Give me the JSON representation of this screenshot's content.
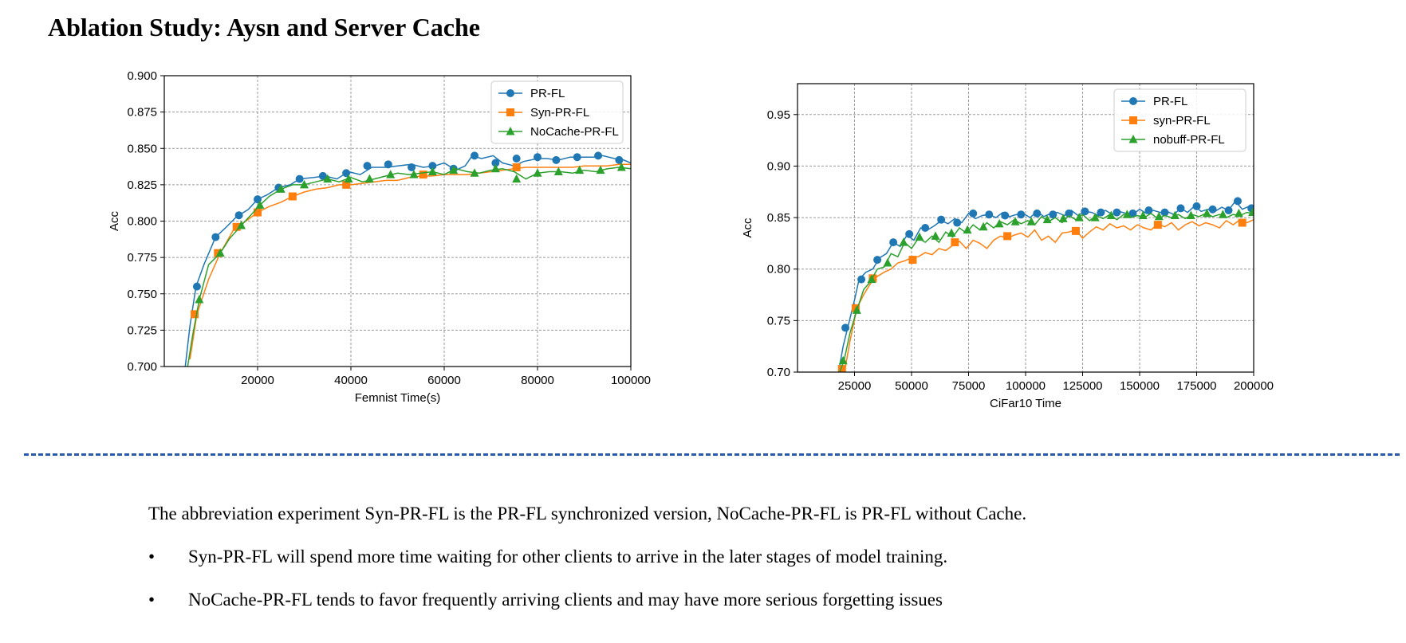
{
  "title": "Ablation Study: Aysn and Server Cache",
  "chart_data": [
    {
      "type": "line",
      "xlabel": "Femnist Time(s)",
      "ylabel": "Acc",
      "xlim": [
        0,
        100000
      ],
      "ylim": [
        0.7,
        0.9
      ],
      "xticks": [
        20000,
        40000,
        60000,
        80000,
        100000
      ],
      "yticks": [
        0.7,
        0.725,
        0.75,
        0.775,
        0.8,
        0.825,
        0.85,
        0.875,
        0.9
      ],
      "ytick_decimals": 3,
      "grid": true,
      "legend": "top-right",
      "series": [
        {
          "name": "PR-FL",
          "color": "#1f77b4",
          "marker": "circle",
          "x": [
            4500,
            5500,
            6800,
            8500,
            11000,
            13000,
            15500,
            18000,
            20000,
            22000,
            24500,
            27000,
            29000,
            32000,
            34500,
            37000,
            39500,
            42000,
            44500,
            47500,
            50000,
            53000,
            55500,
            58000,
            60000,
            62500,
            64500,
            66000,
            68000,
            70500,
            72500,
            75000,
            77000,
            80000,
            82000,
            84500,
            87000,
            89500,
            92000,
            94000,
            96500,
            98500,
            100000
          ],
          "y": [
            0.7,
            0.728,
            0.755,
            0.77,
            0.789,
            0.795,
            0.803,
            0.808,
            0.815,
            0.818,
            0.823,
            0.825,
            0.829,
            0.83,
            0.831,
            0.829,
            0.834,
            0.832,
            0.837,
            0.837,
            0.838,
            0.839,
            0.837,
            0.838,
            0.84,
            0.835,
            0.838,
            0.845,
            0.843,
            0.845,
            0.84,
            0.838,
            0.841,
            0.843,
            0.843,
            0.842,
            0.844,
            0.844,
            0.844,
            0.845,
            0.843,
            0.842,
            0.84
          ],
          "marker_x": [
            7000,
            11000,
            16000,
            20000,
            24500,
            29000,
            34000,
            39000,
            43500,
            48000,
            53000,
            57500,
            62000,
            66500,
            71000,
            75500,
            80000,
            84000,
            88500,
            93000,
            97500
          ],
          "marker_y": [
            0.755,
            0.789,
            0.804,
            0.815,
            0.823,
            0.829,
            0.831,
            0.833,
            0.838,
            0.839,
            0.837,
            0.838,
            0.836,
            0.845,
            0.84,
            0.843,
            0.844,
            0.842,
            0.844,
            0.845,
            0.842
          ]
        },
        {
          "name": "Syn-PR-FL",
          "color": "#ff7f0e",
          "marker": "square",
          "x": [
            5500,
            7000,
            9500,
            12000,
            15000,
            17500,
            20000,
            22500,
            25000,
            27500,
            30000,
            32500,
            35000,
            37500,
            40000,
            42500,
            45000,
            47500,
            50000,
            52500,
            55000,
            57500,
            60000,
            62500,
            65000,
            67500,
            70000,
            72500,
            75000,
            77500,
            80000,
            82500,
            85000,
            87500,
            90000,
            92500,
            95000,
            97500,
            100000
          ],
          "y": [
            0.705,
            0.736,
            0.76,
            0.778,
            0.795,
            0.8,
            0.806,
            0.81,
            0.813,
            0.817,
            0.82,
            0.822,
            0.823,
            0.825,
            0.825,
            0.826,
            0.827,
            0.828,
            0.828,
            0.83,
            0.831,
            0.831,
            0.832,
            0.832,
            0.832,
            0.833,
            0.834,
            0.835,
            0.836,
            0.837,
            0.837,
            0.837,
            0.837,
            0.837,
            0.838,
            0.838,
            0.838,
            0.839,
            0.839
          ],
          "marker_x": [
            6500,
            11500,
            15500,
            20000,
            27500,
            39000,
            55500,
            75500
          ],
          "marker_y": [
            0.736,
            0.778,
            0.796,
            0.806,
            0.817,
            0.825,
            0.832,
            0.837
          ]
        },
        {
          "name": "NoCache-PR-FL",
          "color": "#2ca02c",
          "marker": "triangle",
          "x": [
            5000,
            6000,
            7500,
            9500,
            12000,
            14000,
            16500,
            18500,
            20500,
            22500,
            25000,
            27500,
            30000,
            32500,
            35000,
            37500,
            40000,
            42500,
            45000,
            47500,
            50000,
            52500,
            55000,
            57500,
            60000,
            62500,
            65000,
            67500,
            70000,
            72500,
            75000,
            77500,
            80000,
            82500,
            85000,
            87500,
            90000,
            92500,
            95000,
            97500,
            100000
          ],
          "y": [
            0.7,
            0.72,
            0.746,
            0.77,
            0.778,
            0.788,
            0.797,
            0.804,
            0.811,
            0.817,
            0.822,
            0.825,
            0.825,
            0.827,
            0.829,
            0.827,
            0.83,
            0.827,
            0.829,
            0.831,
            0.833,
            0.832,
            0.833,
            0.834,
            0.832,
            0.836,
            0.834,
            0.833,
            0.835,
            0.836,
            0.834,
            0.829,
            0.833,
            0.834,
            0.834,
            0.833,
            0.835,
            0.834,
            0.836,
            0.837,
            0.836
          ],
          "marker_x": [
            7500,
            12000,
            16500,
            20500,
            25000,
            30000,
            35000,
            39500,
            44000,
            48500,
            53500,
            57500,
            62000,
            66500,
            71000,
            75500,
            80000,
            84500,
            89000,
            93500,
            98000
          ],
          "marker_y": [
            0.746,
            0.778,
            0.797,
            0.811,
            0.822,
            0.825,
            0.829,
            0.829,
            0.829,
            0.832,
            0.832,
            0.834,
            0.835,
            0.833,
            0.836,
            0.829,
            0.833,
            0.834,
            0.835,
            0.835,
            0.837
          ]
        }
      ]
    },
    {
      "type": "line",
      "xlabel": "CiFar10 Time",
      "ylabel": "Acc",
      "xlim": [
        0,
        200000
      ],
      "ylim": [
        0.7,
        0.98
      ],
      "xticks": [
        25000,
        50000,
        75000,
        100000,
        125000,
        150000,
        175000,
        200000
      ],
      "yticks": [
        0.7,
        0.75,
        0.8,
        0.85,
        0.9,
        0.95
      ],
      "ytick_decimals": 2,
      "grid": true,
      "legend": "top-right",
      "series": [
        {
          "name": "PR-FL",
          "color": "#1f77b4",
          "marker": "circle",
          "x": [
            18000,
            20000,
            22000,
            25000,
            27000,
            30000,
            33000,
            36000,
            39000,
            42000,
            45000,
            48000,
            51000,
            54000,
            57000,
            60000,
            63000,
            66000,
            69000,
            72000,
            75000,
            78000,
            81000,
            84000,
            87000,
            90000,
            93000,
            96000,
            99000,
            102000,
            105000,
            108000,
            111000,
            114000,
            117000,
            120000,
            123000,
            126000,
            129000,
            132000,
            135000,
            138000,
            141000,
            144000,
            147000,
            150000,
            153000,
            156000,
            159000,
            162000,
            165000,
            168000,
            171000,
            174000,
            177000,
            180000,
            183000,
            186000,
            189000,
            192000,
            195000,
            198000,
            200000
          ],
          "y": [
            0.7,
            0.725,
            0.743,
            0.77,
            0.79,
            0.797,
            0.8,
            0.811,
            0.815,
            0.826,
            0.822,
            0.833,
            0.828,
            0.84,
            0.838,
            0.842,
            0.847,
            0.844,
            0.849,
            0.845,
            0.854,
            0.849,
            0.852,
            0.853,
            0.85,
            0.855,
            0.851,
            0.853,
            0.854,
            0.85,
            0.856,
            0.851,
            0.854,
            0.855,
            0.852,
            0.857,
            0.852,
            0.856,
            0.855,
            0.852,
            0.857,
            0.853,
            0.856,
            0.854,
            0.853,
            0.858,
            0.854,
            0.857,
            0.855,
            0.856,
            0.853,
            0.859,
            0.855,
            0.861,
            0.856,
            0.858,
            0.856,
            0.86,
            0.857,
            0.866,
            0.858,
            0.861,
            0.859
          ],
          "marker_x": [
            21000,
            28000,
            35000,
            42000,
            49000,
            56000,
            63000,
            70000,
            77000,
            84000,
            91000,
            98000,
            105000,
            112000,
            119000,
            126000,
            133000,
            140000,
            147000,
            154000,
            161000,
            168000,
            175000,
            182000,
            189000,
            193000,
            199000
          ],
          "marker_y": [
            0.743,
            0.79,
            0.809,
            0.826,
            0.834,
            0.84,
            0.848,
            0.845,
            0.854,
            0.853,
            0.852,
            0.853,
            0.854,
            0.853,
            0.854,
            0.856,
            0.855,
            0.855,
            0.854,
            0.857,
            0.855,
            0.859,
            0.861,
            0.858,
            0.857,
            0.866,
            0.859
          ]
        },
        {
          "name": "syn-PR-FL",
          "color": "#ff7f0e",
          "marker": "square",
          "x": [
            19000,
            21000,
            23000,
            26000,
            29000,
            32000,
            35000,
            38000,
            41000,
            44000,
            47000,
            50000,
            53000,
            56000,
            59000,
            62000,
            65000,
            68000,
            71000,
            74000,
            77000,
            80000,
            83000,
            86000,
            89000,
            92000,
            95000,
            98000,
            101000,
            104000,
            107000,
            110000,
            113000,
            116000,
            119000,
            122000,
            125000,
            128000,
            131000,
            134000,
            137000,
            140000,
            143000,
            146000,
            149000,
            152000,
            155000,
            158000,
            161000,
            164000,
            167000,
            170000,
            173000,
            176000,
            179000,
            182000,
            185000,
            188000,
            191000,
            194000,
            197000,
            200000
          ],
          "y": [
            0.7,
            0.705,
            0.73,
            0.762,
            0.775,
            0.786,
            0.793,
            0.797,
            0.8,
            0.806,
            0.808,
            0.811,
            0.812,
            0.816,
            0.814,
            0.82,
            0.818,
            0.823,
            0.827,
            0.82,
            0.828,
            0.825,
            0.82,
            0.828,
            0.832,
            0.83,
            0.833,
            0.835,
            0.831,
            0.838,
            0.828,
            0.832,
            0.826,
            0.835,
            0.836,
            0.838,
            0.83,
            0.836,
            0.841,
            0.838,
            0.844,
            0.84,
            0.842,
            0.838,
            0.843,
            0.84,
            0.838,
            0.844,
            0.841,
            0.845,
            0.838,
            0.843,
            0.846,
            0.842,
            0.845,
            0.843,
            0.84,
            0.847,
            0.843,
            0.848,
            0.845,
            0.848
          ],
          "marker_x": [
            19500,
            25500,
            33000,
            50500,
            69000,
            92000,
            122000,
            158000,
            195000
          ],
          "marker_y": [
            0.703,
            0.762,
            0.791,
            0.809,
            0.826,
            0.832,
            0.837,
            0.843,
            0.845
          ]
        },
        {
          "name": "nobuff-PR-FL",
          "color": "#2ca02c",
          "marker": "triangle",
          "x": [
            18500,
            20500,
            23000,
            26000,
            29000,
            32000,
            35000,
            38000,
            41000,
            44000,
            47000,
            50000,
            53000,
            56000,
            59000,
            62000,
            65000,
            68000,
            71000,
            74000,
            77000,
            80000,
            83000,
            86000,
            89000,
            92000,
            95000,
            98000,
            101000,
            104000,
            107000,
            110000,
            113000,
            116000,
            119000,
            122000,
            125000,
            128000,
            131000,
            134000,
            137000,
            140000,
            143000,
            146000,
            149000,
            152000,
            155000,
            158000,
            161000,
            164000,
            167000,
            170000,
            173000,
            176000,
            179000,
            182000,
            185000,
            188000,
            191000,
            194000,
            197000,
            200000
          ],
          "y": [
            0.7,
            0.712,
            0.738,
            0.76,
            0.78,
            0.788,
            0.8,
            0.802,
            0.815,
            0.812,
            0.826,
            0.82,
            0.83,
            0.826,
            0.832,
            0.826,
            0.836,
            0.831,
            0.84,
            0.835,
            0.843,
            0.838,
            0.845,
            0.84,
            0.846,
            0.843,
            0.848,
            0.844,
            0.847,
            0.843,
            0.851,
            0.846,
            0.85,
            0.845,
            0.852,
            0.848,
            0.853,
            0.847,
            0.852,
            0.849,
            0.853,
            0.848,
            0.853,
            0.85,
            0.852,
            0.85,
            0.854,
            0.849,
            0.852,
            0.85,
            0.853,
            0.849,
            0.853,
            0.851,
            0.854,
            0.851,
            0.853,
            0.85,
            0.853,
            0.852,
            0.855,
            0.854
          ],
          "marker_x": [
            20000,
            26000,
            32500,
            39500,
            46500,
            53500,
            60500,
            67500,
            74500,
            81500,
            88500,
            95500,
            102500,
            109500,
            116500,
            123500,
            130500,
            137500,
            144500,
            151500,
            158500,
            165500,
            172500,
            179500,
            186500,
            193500,
            199500
          ],
          "marker_y": [
            0.711,
            0.76,
            0.79,
            0.806,
            0.826,
            0.831,
            0.832,
            0.835,
            0.838,
            0.841,
            0.844,
            0.846,
            0.846,
            0.848,
            0.849,
            0.85,
            0.85,
            0.852,
            0.853,
            0.852,
            0.851,
            0.852,
            0.852,
            0.854,
            0.853,
            0.854,
            0.855
          ]
        }
      ]
    }
  ],
  "notes": {
    "intro": "The abbreviation experiment Syn-PR-FL is the PR-FL synchronized version, NoCache-PR-FL is PR-FL without Cache.",
    "bullet_symbol": "•",
    "bullets": [
      "Syn-PR-FL will spend more time waiting for other clients to arrive in the later stages of model training.",
      "NoCache-PR-FL tends to favor frequently arriving clients and may have more serious forgetting issues"
    ]
  }
}
